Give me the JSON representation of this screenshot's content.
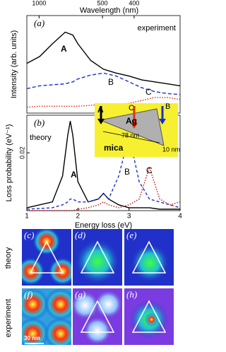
{
  "chart_data": [
    {
      "type": "line",
      "panel_label": "(a)",
      "panel_text": "experiment",
      "ylabel": "Intensity (arb. units)",
      "x2label": "Wavelength (nm)",
      "x2ticks": [
        1000,
        500,
        400
      ],
      "xlim": [
        1,
        4
      ],
      "ylim": [
        0,
        1
      ],
      "x": [
        1,
        1.25,
        1.5,
        1.75,
        1.9,
        2,
        2.25,
        2.5,
        2.75,
        3,
        3.25,
        3.5,
        3.75,
        4
      ],
      "series": [
        {
          "name": "A",
          "color": "#000000",
          "dash": "none",
          "values": [
            0.51,
            0.58,
            0.71,
            0.83,
            0.8,
            0.71,
            0.54,
            0.45,
            0.41,
            0.38,
            0.34,
            0.32,
            0.3,
            0.28
          ]
        },
        {
          "name": "B",
          "color": "#1a2fd0",
          "dash": "5,3",
          "values": [
            0.25,
            0.28,
            0.29,
            0.3,
            0.32,
            0.35,
            0.39,
            0.41,
            0.38,
            0.32,
            0.26,
            0.22,
            0.2,
            0.19
          ]
        },
        {
          "name": "C",
          "color": "#e02010",
          "dash": "1.5,2",
          "values": [
            0.06,
            0.07,
            0.07,
            0.07,
            0.07,
            0.07,
            0.08,
            0.09,
            0.09,
            0.1,
            0.13,
            0.16,
            0.16,
            0.14
          ]
        }
      ]
    },
    {
      "type": "line",
      "panel_label": "(b)",
      "panel_text": "theory",
      "ylabel": "Loss probability (eV⁻¹)",
      "xlabel": "Energy loss (eV)",
      "xlim": [
        1,
        4
      ],
      "xticks": [
        1,
        2,
        3,
        4
      ],
      "ylim": [
        0,
        0.033
      ],
      "yticks": [
        0.02
      ],
      "x": [
        1,
        1.5,
        1.7,
        1.8,
        1.85,
        1.9,
        2,
        2.2,
        2.4,
        2.5,
        2.6,
        2.8,
        3,
        3.2,
        3.4,
        3.6,
        3.8,
        4
      ],
      "series": [
        {
          "name": "A",
          "color": "#000000",
          "dash": "none",
          "values": [
            0.001,
            0.003,
            0.012,
            0.026,
            0.031,
            0.026,
            0.01,
            0.003,
            0.004,
            0.006,
            0.004,
            0.002,
            0.001,
            0.001,
            0.001,
            0.0005,
            0.0005,
            0.0005
          ]
        },
        {
          "name": "B",
          "color": "#1a2fd0",
          "dash": "4,3",
          "values": [
            0.0005,
            0.001,
            0.002,
            0.003,
            0.004,
            0.004,
            0.003,
            0.003,
            0.004,
            0.006,
            0.004,
            0.012,
            0.026,
            0.01,
            0.004,
            0.003,
            0.002,
            0.001
          ]
        },
        {
          "name": "C",
          "color": "#c01010",
          "dash": "1.5,2",
          "values": [
            0,
            0,
            0,
            0,
            0,
            0,
            0.0005,
            0.001,
            0.002,
            0.003,
            0.002,
            0.001,
            0.002,
            0.004,
            0.015,
            0.004,
            0.002,
            0.003
          ]
        }
      ]
    }
  ],
  "inset": {
    "corner_a": "A",
    "metal": "Ag",
    "corner_c": "C",
    "corner_b": "B",
    "side": "78 nm",
    "thickness": "10 nm",
    "substrate": "mica"
  },
  "maps": {
    "row_labels": [
      "theory",
      "experiment"
    ],
    "panels": [
      "(c)",
      "(d)",
      "(e)",
      "(f)",
      "(g)",
      "(h)"
    ],
    "scale": "30 nm"
  }
}
